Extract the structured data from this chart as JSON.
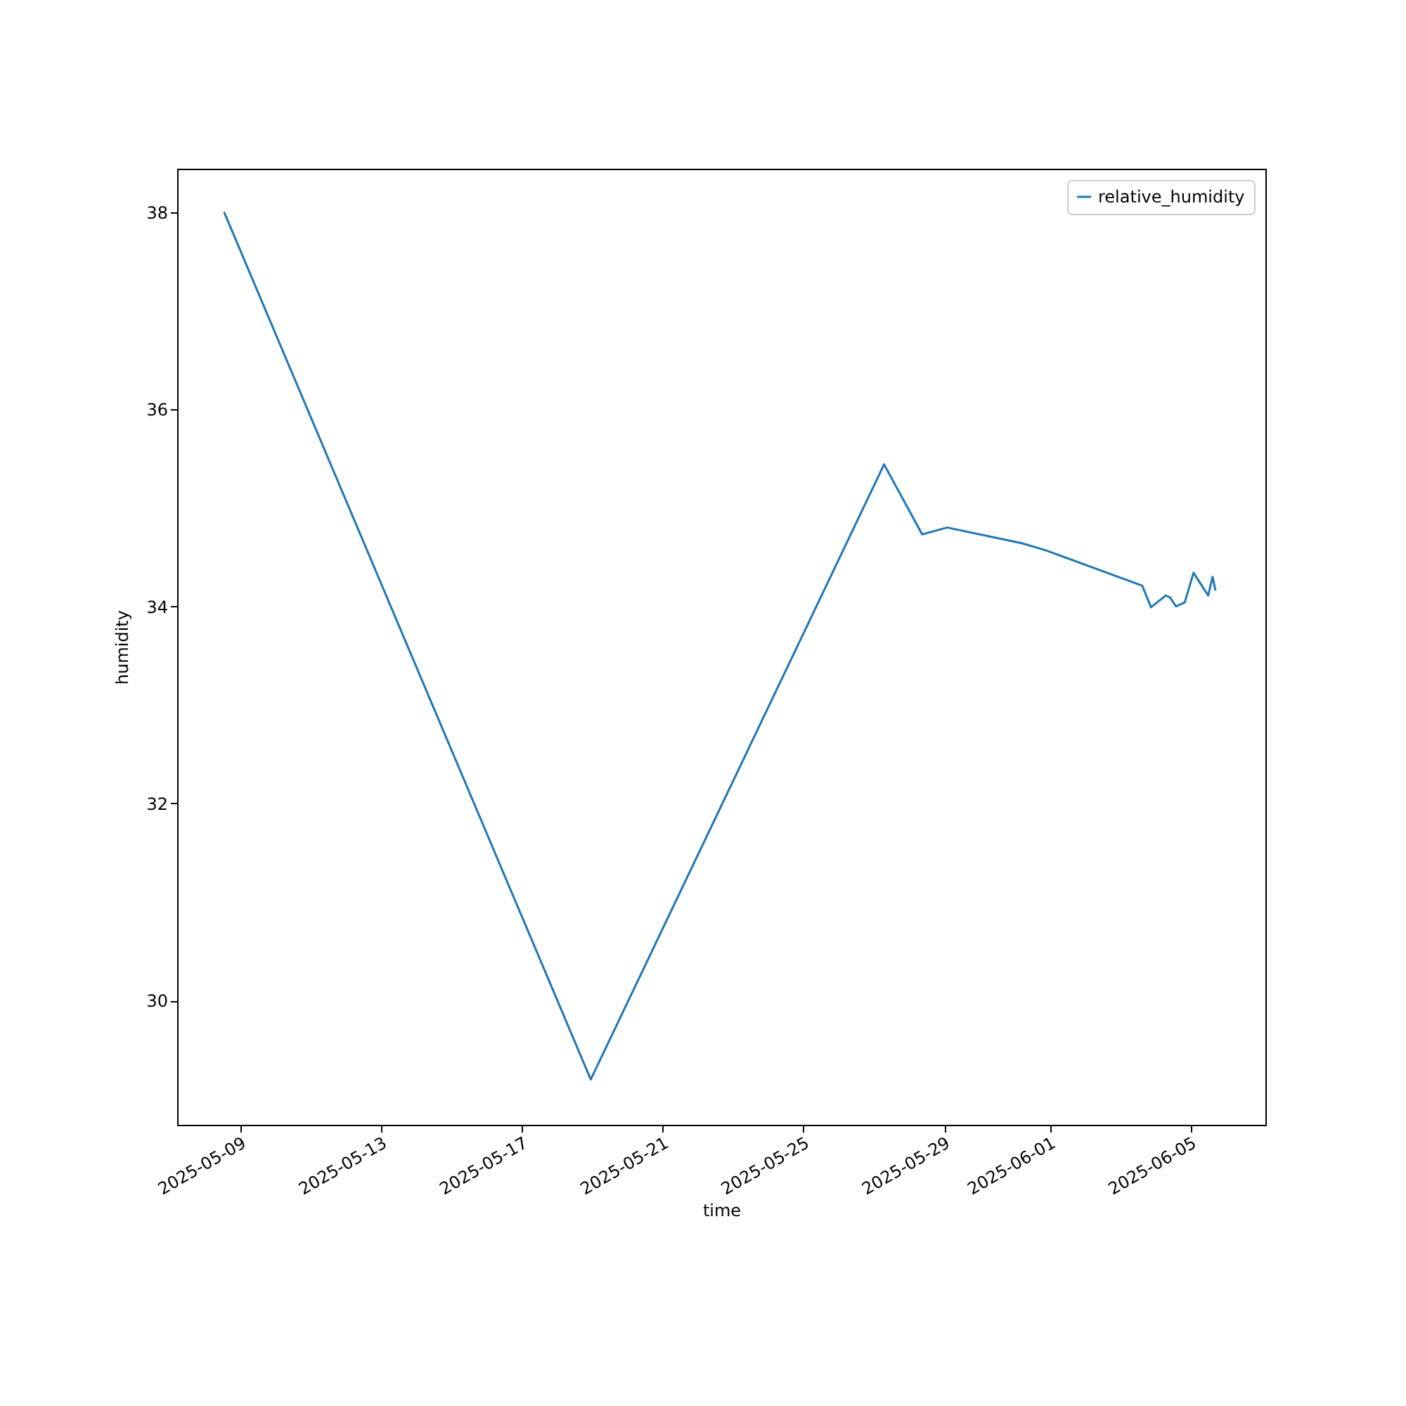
{
  "chart_data": {
    "type": "line",
    "xlabel": "time",
    "ylabel": "humidity",
    "x": [
      "2025-05-08T13:00",
      "2025-05-18T23:00",
      "2025-05-27T07:00",
      "2025-05-28T09:00",
      "2025-05-29T02:00",
      "2025-05-31T05:00",
      "2025-05-31T21:00",
      "2025-06-03T15:00",
      "2025-06-03T21:00",
      "2025-06-04T07:00",
      "2025-06-04T10:00",
      "2025-06-04T14:00",
      "2025-06-04T20:00",
      "2025-06-05T02:00",
      "2025-06-05T12:00",
      "2025-06-05T15:00",
      "2025-06-05T17:00"
    ],
    "series": [
      {
        "name": "relative_humidity",
        "color": "#1f77b4",
        "values": [
          38.0,
          29.2,
          35.44,
          34.73,
          34.8,
          34.64,
          34.57,
          34.21,
          33.99,
          34.11,
          34.09,
          34.0,
          34.04,
          34.34,
          34.11,
          34.3,
          34.16
        ]
      }
    ],
    "xlim": [
      "2025-05-07T05:00",
      "2025-06-07T03:00"
    ],
    "xticks": [
      "2025-05-09",
      "2025-05-13",
      "2025-05-17",
      "2025-05-21",
      "2025-05-25",
      "2025-05-29",
      "2025-06-01",
      "2025-06-05"
    ],
    "ylim": [
      28.74,
      38.44
    ],
    "yticks": [
      30,
      32,
      34,
      36,
      38
    ],
    "grid": false,
    "legend": "top right",
    "marker": "none",
    "line_style": "solid"
  }
}
